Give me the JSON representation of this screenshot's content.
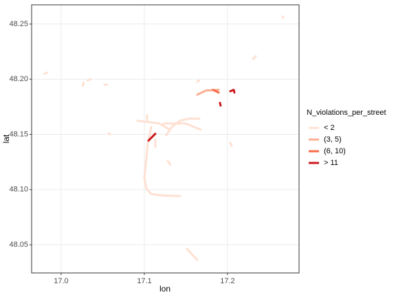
{
  "chart_data": {
    "type": "line",
    "x_label": "lon",
    "y_label": "lat",
    "legend_title": "N_violations_per_street",
    "xlim": [
      16.9645,
      17.286
    ],
    "ylim": [
      48.0245,
      48.2674
    ],
    "xticks": [
      {
        "value": 17.0,
        "label": "17.0"
      },
      {
        "value": 17.1,
        "label": "17.1"
      },
      {
        "value": 17.2,
        "label": "17.2"
      }
    ],
    "yticks": [
      48.05,
      {
        "value": 48.1,
        "label": "48.10"
      },
      48.15,
      {
        "value": 48.2,
        "label": "48.20"
      },
      48.25
    ],
    "grid": true,
    "legend": "right",
    "series": [
      {
        "name": "< 2",
        "color": "#fee0d2",
        "x": [
          16.98,
          16.983,
          null,
          17.026,
          17.027,
          null,
          17.032,
          17.035,
          null,
          17.052,
          17.055,
          null,
          17.057,
          17.059,
          null,
          17.0917,
          17.1182,
          17.1289,
          null,
          17.1083,
          17.1041,
          17.1017,
          17.1,
          17.1025,
          17.1083,
          17.1207,
          17.143,
          null,
          17.1264,
          17.1331,
          17.143,
          17.1537,
          17.1661,
          null,
          17.1231,
          17.1496,
          17.1678,
          null,
          17.1033,
          17.1033,
          null,
          17.1132,
          17.1132,
          null,
          17.1281,
          17.1314,
          null,
          17.1512,
          17.1636,
          null,
          17.1636,
          17.1661,
          null,
          17.2033,
          17.205,
          null,
          17.2306,
          17.2339,
          null,
          17.2661,
          17.2669
        ],
        "values": [
          48.205,
          48.206,
          null,
          48.194,
          48.197,
          null,
          48.199,
          48.2,
          null,
          48.195,
          48.195,
          null,
          48.151,
          48.15,
          null,
          48.1624,
          48.1599,
          48.155,
          null,
          48.1568,
          48.1413,
          48.1227,
          48.1102,
          48.1009,
          48.096,
          48.0947,
          48.0941,
          null,
          48.1494,
          48.1568,
          48.1624,
          48.1643,
          48.1643,
          null,
          48.1599,
          48.1599,
          48.1543,
          null,
          48.1674,
          48.163,
          null,
          48.145,
          48.1388,
          null,
          48.1258,
          48.1227,
          null,
          48.0463,
          48.0363,
          null,
          48.1978,
          48.1991,
          null,
          48.1425,
          48.1394,
          null,
          48.2183,
          48.2208,
          null,
          48.2568,
          48.2556
        ]
      },
      {
        "name": "(3, 5)",
        "color": "#fcae91",
        "x": [
          17.1636,
          17.1744,
          17.1893
        ],
        "values": [
          48.186,
          48.1898,
          48.1904
        ]
      },
      {
        "name": "(6, 10)",
        "color": "#fb6a4a",
        "x": [
          17.1826,
          17.1893
        ],
        "values": [
          48.1904,
          48.1879
        ]
      },
      {
        "name": "> 11",
        "color": "#cb181d",
        "x": [
          17.105,
          17.1132,
          null,
          17.1909,
          17.1917,
          null,
          17.2033,
          17.2074,
          17.2083
        ],
        "values": [
          48.1444,
          48.1506,
          null,
          48.1786,
          48.1761,
          null,
          48.1891,
          48.1904,
          48.1879
        ]
      }
    ]
  }
}
